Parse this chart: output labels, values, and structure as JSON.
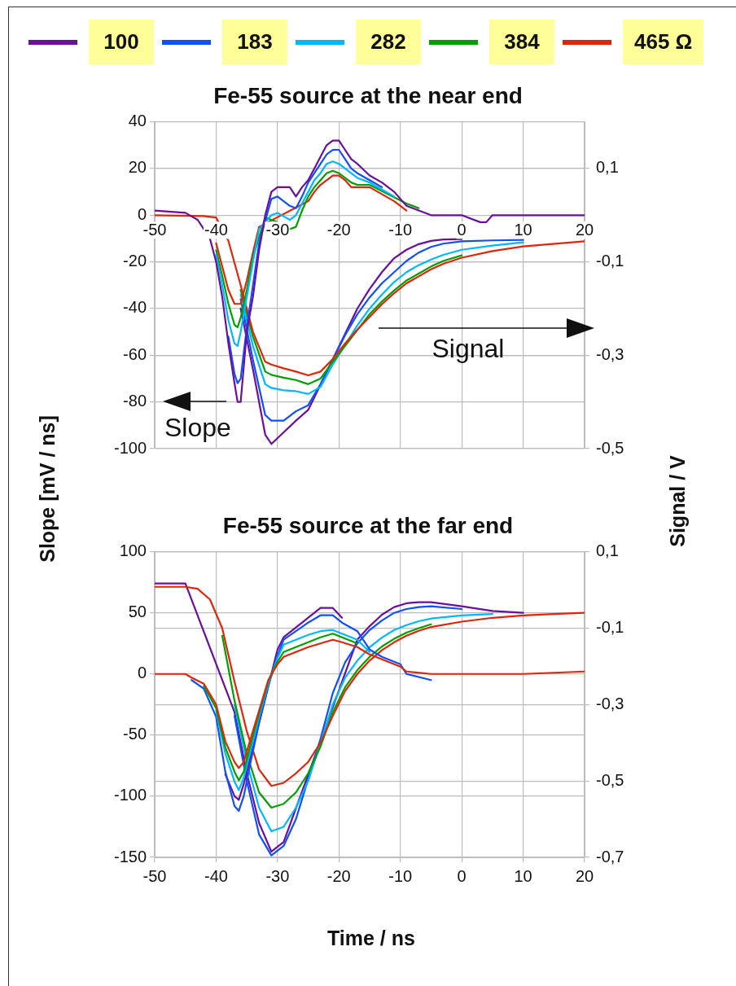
{
  "chart_data": [
    {
      "type": "line",
      "title": "Fe-55 source at the near end",
      "ylabel": "Slope [mV / ns]",
      "y2label": "Signal / V",
      "legend": "top",
      "grid": true,
      "xlim": [
        -50,
        20
      ],
      "xticks": [
        -50,
        -40,
        -30,
        -20,
        -10,
        0,
        10,
        20
      ],
      "ylim": [
        -100,
        40
      ],
      "yticks": [
        -100,
        -80,
        -60,
        -40,
        -20,
        0,
        20,
        40
      ],
      "y2lim": [
        -0.5,
        0.2
      ],
      "y2ticks": [
        {
          "value": 0.1,
          "label": "0,1"
        },
        {
          "value": -0.1,
          "label": "-0,1"
        },
        {
          "value": -0.3,
          "label": "-0,3"
        },
        {
          "value": -0.5,
          "label": "-0,5"
        }
      ],
      "annotations": [
        "Signal",
        "Slope"
      ],
      "series": [
        {
          "name": "100",
          "color": "#6b0f9e",
          "x": [
            -50,
            -45,
            -43,
            -41,
            -40,
            -39,
            -38,
            -37,
            -36.5,
            -36,
            -35.5,
            -35,
            -34,
            -33,
            -32,
            -31,
            -30,
            -28,
            -27,
            -26,
            -25,
            -24,
            -23,
            -22,
            -21,
            -20,
            -19,
            -18,
            -17,
            -15,
            -13,
            -11,
            -9,
            -7,
            -5,
            0,
            3,
            4,
            5,
            10,
            20
          ],
          "values": [
            2,
            1,
            -2,
            -10,
            -20,
            -35,
            -55,
            -72,
            -80,
            -80,
            -65,
            -50,
            -35,
            -15,
            0,
            10,
            12,
            12,
            8,
            12,
            15,
            20,
            25,
            30,
            32,
            32,
            28,
            24,
            22,
            17,
            14,
            10,
            4,
            2,
            0,
            0,
            -3,
            -3,
            0,
            0,
            0
          ]
        },
        {
          "name": "183",
          "color": "#0f4fff",
          "x": [
            -38,
            -37,
            -36.5,
            -36,
            -35,
            -34,
            -33,
            -31,
            -30,
            -28,
            -27,
            -26,
            -25,
            -24,
            -23,
            -22,
            -21,
            -20,
            -19,
            -18,
            -17,
            -15,
            -13
          ],
          "values": [
            -52,
            -68,
            -72,
            -70,
            -48,
            -30,
            -12,
            7,
            8,
            4,
            3,
            8,
            14,
            18,
            22,
            26,
            28,
            28,
            24,
            20,
            18,
            15,
            12
          ]
        },
        {
          "name": "282",
          "color": "#00b8ff",
          "x": [
            -40,
            -39,
            -38,
            -37,
            -36.5,
            -36,
            -35,
            -34,
            -33,
            -31,
            -30,
            -28,
            -27,
            -26,
            -25,
            -24,
            -23,
            -22,
            -21,
            -20,
            -19,
            -18,
            -17,
            -15,
            -13,
            -11
          ],
          "values": [
            -17,
            -30,
            -45,
            -55,
            -56,
            -50,
            -35,
            -20,
            -6,
            0,
            1,
            -2,
            0,
            5,
            10,
            15,
            18,
            22,
            23,
            22,
            20,
            18,
            16,
            14,
            11,
            8
          ]
        },
        {
          "name": "384",
          "color": "#00a000",
          "x": [
            -40,
            -39,
            -38,
            -37,
            -36.5,
            -36,
            -35,
            -34,
            -32,
            -31,
            -30,
            -28,
            -27,
            -26,
            -25,
            -24,
            -23,
            -22,
            -21,
            -20,
            -19,
            -18,
            -17,
            -15,
            -9,
            -7
          ],
          "values": [
            -15,
            -26,
            -38,
            -47,
            -48,
            -44,
            -32,
            -18,
            -1,
            -2,
            -3,
            -6,
            -5,
            2,
            8,
            12,
            15,
            18,
            19,
            18,
            16,
            14,
            13,
            13,
            5,
            3
          ]
        },
        {
          "name": "465 Ω",
          "color": "#e0260a",
          "x": [
            -40,
            -39,
            -38,
            -37,
            -36.5,
            -36,
            -35,
            -34,
            -33,
            -25,
            -24,
            -23,
            -22,
            -21,
            -20,
            -19,
            -18,
            -17,
            -15,
            -11,
            -9
          ],
          "values": [
            -12,
            -22,
            -32,
            -38,
            -38,
            -38,
            -28,
            -16,
            -5,
            6,
            10,
            13,
            15,
            17,
            17,
            15,
            12,
            12,
            12,
            6,
            2
          ]
        },
        {
          "color": "#e0260a",
          "axis": "y2",
          "x": [
            -50,
            -42,
            -40,
            -38,
            -36,
            -34,
            -32,
            -31,
            -29,
            -27,
            -25,
            -23,
            -21,
            -19,
            -17,
            -15,
            -13,
            -11,
            -9,
            -7,
            -5,
            -3,
            0,
            5,
            10,
            20
          ],
          "values": [
            0,
            -0.002,
            -0.005,
            -0.055,
            -0.15,
            -0.25,
            -0.314,
            -0.32,
            -0.328,
            -0.335,
            -0.343,
            -0.335,
            -0.308,
            -0.275,
            -0.245,
            -0.218,
            -0.191,
            -0.167,
            -0.146,
            -0.131,
            -0.116,
            -0.104,
            -0.091,
            -0.077,
            -0.067,
            -0.056
          ]
        },
        {
          "color": "#00a000",
          "axis": "y2",
          "x": [
            -36,
            -34,
            -32,
            -31,
            -29,
            -27,
            -25,
            -23,
            -21,
            -15,
            -13,
            -11,
            -9,
            -7,
            -5,
            -3,
            0
          ],
          "values": [
            -0.16,
            -0.26,
            -0.335,
            -0.342,
            -0.348,
            -0.353,
            -0.362,
            -0.35,
            -0.314,
            -0.212,
            -0.185,
            -0.161,
            -0.14,
            -0.125,
            -0.11,
            -0.098,
            -0.086
          ]
        },
        {
          "color": "#00b8ff",
          "axis": "y2",
          "x": [
            -36,
            -34,
            -32,
            -31,
            -29,
            -27,
            -25,
            -23,
            -21,
            -17,
            -15,
            -13,
            -11,
            -9,
            -7,
            -5,
            -3,
            0,
            5,
            10
          ],
          "values": [
            -0.17,
            -0.28,
            -0.362,
            -0.37,
            -0.375,
            -0.377,
            -0.383,
            -0.368,
            -0.32,
            -0.236,
            -0.2,
            -0.17,
            -0.143,
            -0.122,
            -0.107,
            -0.095,
            -0.085,
            -0.074,
            -0.065,
            -0.058
          ]
        },
        {
          "color": "#0f4fff",
          "axis": "y2",
          "x": [
            -36,
            -34,
            -32,
            -31,
            -29,
            -27,
            -25,
            -23,
            -19,
            -17,
            -15,
            -13,
            -11,
            -9,
            -7,
            -5,
            -3,
            0,
            5,
            10
          ],
          "values": [
            -0.18,
            -0.31,
            -0.428,
            -0.44,
            -0.44,
            -0.42,
            -0.407,
            -0.362,
            -0.257,
            -0.212,
            -0.176,
            -0.146,
            -0.122,
            -0.098,
            -0.08,
            -0.068,
            -0.061,
            -0.056,
            -0.054,
            -0.053
          ]
        },
        {
          "color": "#6b0f9e",
          "axis": "y2",
          "x": [
            -36,
            -34,
            -32,
            -31,
            -29,
            -27,
            -25,
            -17,
            -15,
            -13,
            -11,
            -9,
            -7,
            -5,
            -3,
            0
          ],
          "values": [
            -0.2,
            -0.33,
            -0.47,
            -0.49,
            -0.465,
            -0.44,
            -0.417,
            -0.2,
            -0.158,
            -0.122,
            -0.092,
            -0.074,
            -0.062,
            -0.055,
            -0.052,
            -0.051
          ]
        }
      ]
    },
    {
      "type": "line",
      "title": "Fe-55 source at the far end",
      "xlabel": "Time / ns",
      "grid": true,
      "xlim": [
        -50,
        20
      ],
      "xticks": [
        -50,
        -40,
        -30,
        -20,
        -10,
        0,
        10,
        20
      ],
      "ylim": [
        -150,
        100
      ],
      "yticks": [
        -150,
        -100,
        -50,
        0,
        50,
        100
      ],
      "y2lim": [
        -0.7,
        0.1
      ],
      "y2ticks": [
        {
          "value": 0.1,
          "label": "0,1"
        },
        {
          "value": -0.1,
          "label": "-0,1"
        },
        {
          "value": -0.3,
          "label": "-0,3"
        },
        {
          "value": -0.5,
          "label": "-0,5"
        },
        {
          "value": -0.7,
          "label": "-0,7"
        }
      ],
      "series": [
        {
          "color": "#e0260a",
          "x": [
            -50,
            -45,
            -44,
            -42,
            -40,
            -38.5,
            -37,
            -36.3,
            -35.5,
            -34.5,
            -33,
            -31.5,
            -30,
            -29,
            -27,
            -25,
            -23,
            -21,
            -19.5,
            -17,
            -15,
            -13,
            -10,
            -9,
            -5,
            0,
            5,
            10,
            20
          ],
          "values": [
            0,
            0,
            -3,
            -8,
            -25,
            -55,
            -72,
            -77,
            -72,
            -55,
            -30,
            -5,
            8,
            14,
            18,
            22,
            25,
            28,
            26,
            22,
            16,
            12,
            6,
            2,
            0,
            0,
            0,
            0,
            2
          ]
        },
        {
          "color": "#00a000",
          "x": [
            -42,
            -40,
            -38.5,
            -37,
            -36.3,
            -35.5,
            -34.5,
            -33,
            -31.5,
            -30,
            -29,
            -27,
            -25,
            -23,
            -21,
            -19.5,
            -17
          ],
          "values": [
            -10,
            -28,
            -60,
            -80,
            -87,
            -80,
            -60,
            -32,
            -6,
            10,
            18,
            22,
            26,
            30,
            33,
            30,
            25
          ]
        },
        {
          "color": "#00b8ff",
          "x": [
            -40,
            -38.5,
            -37,
            -36.3,
            -35.5,
            -34.5,
            -33,
            -31.5,
            -30,
            -29,
            -27,
            -25,
            -23,
            -21,
            -19.5,
            -17,
            -15
          ],
          "values": [
            -30,
            -65,
            -88,
            -95,
            -85,
            -65,
            -35,
            -8,
            13,
            24,
            28,
            32,
            35,
            36,
            33,
            28,
            18
          ]
        },
        {
          "color": "#0f4fff",
          "x": [
            -44,
            -42,
            -40,
            -38.5,
            -37,
            -36.3,
            -35.5,
            -34.5,
            -33,
            -31.5,
            -30,
            -29,
            -27,
            -25,
            -23,
            -21,
            -19.5,
            -17,
            -15,
            -13,
            -10,
            -9,
            -5
          ],
          "values": [
            -5,
            -12,
            -35,
            -80,
            -108,
            -112,
            -100,
            -75,
            -40,
            -10,
            15,
            28,
            35,
            42,
            48,
            48,
            42,
            35,
            20,
            14,
            8,
            0,
            -5
          ]
        },
        {
          "color": "#6b0f9e",
          "x": [
            -38.5,
            -37,
            -36.3,
            -35.5,
            -30,
            -29,
            -27,
            -25,
            -23,
            -21,
            -19.5
          ],
          "values": [
            -82,
            -100,
            -103,
            -90,
            20,
            30,
            38,
            46,
            54,
            54,
            46
          ]
        },
        {
          "color": "#e0260a",
          "axis": "y2",
          "x": [
            -50,
            -45,
            -43,
            -41,
            -39,
            -37,
            -35,
            -33,
            -31,
            -29,
            -27,
            -25,
            -23,
            -21,
            -19,
            -17,
            -15,
            -13,
            -11,
            -9,
            -7,
            -5,
            0,
            5,
            10,
            15,
            20
          ],
          "values": [
            0.008,
            0.008,
            0.003,
            -0.025,
            -0.1,
            -0.24,
            -0.37,
            -0.47,
            -0.513,
            -0.505,
            -0.48,
            -0.45,
            -0.4,
            -0.33,
            -0.265,
            -0.22,
            -0.185,
            -0.158,
            -0.137,
            -0.12,
            -0.107,
            -0.097,
            -0.083,
            -0.073,
            -0.067,
            -0.063,
            -0.06
          ]
        },
        {
          "color": "#00a000",
          "axis": "y2",
          "x": [
            -39,
            -37,
            -35,
            -33,
            -31,
            -29,
            -27,
            -25,
            -23,
            -21,
            -19,
            -17,
            -15,
            -13,
            -11,
            -9,
            -7,
            -5
          ],
          "values": [
            -0.12,
            -0.29,
            -0.43,
            -0.53,
            -0.57,
            -0.56,
            -0.53,
            -0.48,
            -0.41,
            -0.32,
            -0.255,
            -0.21,
            -0.175,
            -0.148,
            -0.128,
            -0.112,
            -0.1,
            -0.09
          ]
        },
        {
          "color": "#00b8ff",
          "axis": "y2",
          "x": [
            -37,
            -35,
            -33,
            -31,
            -29,
            -27,
            -25,
            -21,
            -19,
            -17,
            -15,
            -13,
            -11,
            -9,
            -7,
            -5,
            0,
            5
          ],
          "values": [
            -0.3,
            -0.45,
            -0.57,
            -0.632,
            -0.62,
            -0.57,
            -0.5,
            -0.3,
            -0.23,
            -0.185,
            -0.15,
            -0.125,
            -0.105,
            -0.092,
            -0.082,
            -0.075,
            -0.067,
            -0.063
          ]
        },
        {
          "color": "#0f4fff",
          "axis": "y2",
          "x": [
            -37,
            -35,
            -33,
            -31,
            -29,
            -27,
            -23,
            -21,
            -19,
            -17,
            -15,
            -13,
            -11,
            -9,
            -7,
            -5,
            0
          ],
          "values": [
            -0.33,
            -0.5,
            -0.64,
            -0.695,
            -0.67,
            -0.6,
            -0.39,
            -0.27,
            -0.19,
            -0.14,
            -0.105,
            -0.08,
            -0.06,
            -0.05,
            -0.045,
            -0.043,
            -0.05
          ]
        },
        {
          "color": "#6b0f9e",
          "axis": "y2",
          "x": [
            -50,
            -45,
            -37,
            -35,
            -33,
            -31,
            -29,
            -17,
            -15,
            -13,
            -11,
            -9,
            -7,
            -5,
            0,
            5,
            10
          ],
          "values": [
            0.017,
            0.017,
            -0.32,
            -0.48,
            -0.61,
            -0.685,
            -0.66,
            -0.13,
            -0.095,
            -0.065,
            -0.045,
            -0.035,
            -0.032,
            -0.032,
            -0.043,
            -0.055,
            -0.06
          ]
        }
      ]
    }
  ]
}
